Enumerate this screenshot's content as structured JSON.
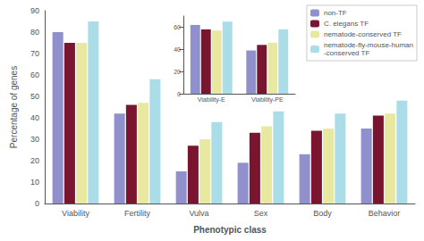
{
  "chart_data": [
    {
      "type": "bar",
      "xlabel": "Phenotypic class",
      "ylabel": "Percentage of genes",
      "categories": [
        "Viability",
        "Fertility",
        "Vulva",
        "Sex",
        "Body",
        "Behavior"
      ],
      "series": [
        {
          "name": "non-TF",
          "color": "#9090cc",
          "values": [
            80,
            42,
            15,
            19,
            23,
            35
          ]
        },
        {
          "name": "C. elegans TF",
          "color": "#7a1530",
          "values": [
            75,
            46,
            27,
            33,
            34,
            41
          ]
        },
        {
          "name": "nematode-conserved TF",
          "color": "#e8e8a0",
          "values": [
            75,
            47,
            30,
            36,
            35,
            42
          ]
        },
        {
          "name": "nematode-fly-mouse-human\n-conserved TF",
          "color": "#aadde8",
          "values": [
            85,
            58,
            38,
            43,
            42,
            48
          ]
        }
      ],
      "ylim": [
        0,
        90
      ],
      "yticks": [
        0,
        10,
        20,
        30,
        40,
        50,
        60,
        70,
        80,
        90
      ],
      "grid": false,
      "legend": "upper right"
    },
    {
      "type": "bar",
      "categories": [
        "Viability-E",
        "Viability-PE"
      ],
      "series": [
        {
          "name": "non-TF",
          "color": "#9090cc",
          "values": [
            62,
            39
          ]
        },
        {
          "name": "C. elegans TF",
          "color": "#7a1530",
          "values": [
            58,
            44
          ]
        },
        {
          "name": "nematode-conserved TF",
          "color": "#e8e8a0",
          "values": [
            57,
            46
          ]
        },
        {
          "name": "nematode-fly-mouse-human\n-conserved TF",
          "color": "#aadde8",
          "values": [
            65,
            58
          ]
        }
      ],
      "ylim": [
        0,
        70
      ],
      "yticks": [
        0,
        20,
        40,
        60
      ],
      "grid": false
    }
  ]
}
